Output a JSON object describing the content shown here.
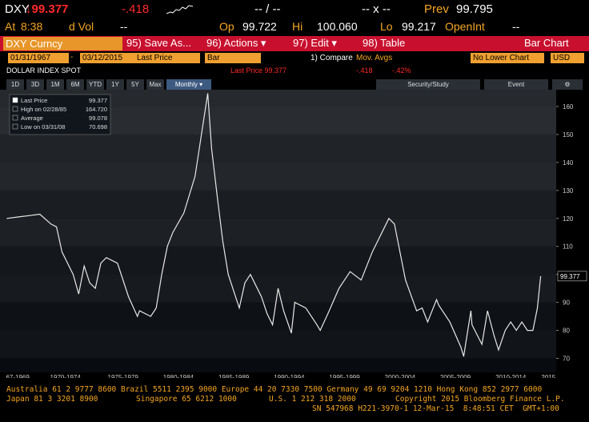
{
  "header": {
    "ticker": "DXY",
    "last": "↓99.377",
    "change": "-.418",
    "bid_ask": "-- / --",
    "size": "-- x --",
    "prev_label": "Prev",
    "prev": "99.795"
  },
  "header2": {
    "at_label": "At",
    "time": "8:38",
    "vol_label": "d Vol",
    "vol": "--",
    "open_label": "Op",
    "open": "99.722",
    "high_label": "Hi",
    "high": "100.060",
    "low_label": "Lo",
    "low": "99.217",
    "oi_label": "OpenInt",
    "oi": "--"
  },
  "toolbar": {
    "security": "DXY Curncy",
    "buttons": [
      "95) Save As...",
      "96) Actions ▾",
      "97) Edit ▾",
      "98) Table"
    ],
    "view": "Bar Chart"
  },
  "settings": {
    "start": "01/31/1967",
    "sep": "-",
    "end": "03/12/2015",
    "field": "Last Price",
    "style": "Bar",
    "compare": "1) Compare",
    "mov": "Mov. Avgs",
    "lower": "No Lower Chart",
    "currency": "USD"
  },
  "info": {
    "name": "DOLLAR INDEX SPOT",
    "last": "Last Price 99.377",
    "change": "-.418",
    "pct": "-.42%"
  },
  "periods": [
    "1D",
    "3D",
    "1M",
    "6M",
    "YTD",
    "1Y",
    "5Y",
    "Max"
  ],
  "frequency": "Monthly ▾",
  "tools": [
    "Security/Study",
    "Event"
  ],
  "chart": {
    "type": "line",
    "color": "#e8e8e8",
    "legend": [
      {
        "label": "Last Price",
        "value": "99.377"
      },
      {
        "label": "High on 02/28/85",
        "value": "164.720"
      },
      {
        "label": "Average",
        "value": "99.078"
      },
      {
        "label": "Low on 03/31/08",
        "value": "70.698"
      }
    ],
    "last_label": "99.377",
    "x": [
      1967,
      1968,
      1969,
      1970,
      1971,
      1971.5,
      1972,
      1973,
      1973.5,
      1974,
      1974.5,
      1975,
      1975.5,
      1976,
      1977,
      1978,
      1978.8,
      1979,
      1980,
      1980.5,
      1981,
      1981.5,
      1982,
      1983,
      1984,
      1985.15,
      1985.5,
      1986,
      1986.5,
      1987,
      1988,
      1988.5,
      1989,
      1989.5,
      1990,
      1990.5,
      1991,
      1991.5,
      1992,
      1992.7,
      1993,
      1994,
      1995,
      1995.3,
      1996,
      1997,
      1998,
      1999,
      2000,
      2001,
      2001.5,
      2002,
      2002.5,
      2003,
      2004,
      2004.5,
      2005,
      2005.8,
      2006,
      2007,
      2008,
      2008.25,
      2008.9,
      2009,
      2009.9,
      2010.4,
      2011,
      2011.4,
      2012,
      2012.5,
      2013,
      2013.5,
      2014,
      2014.5,
      2014.9,
      2015.2
    ],
    "values": [
      120,
      120.5,
      121,
      121.5,
      118,
      117,
      108,
      100,
      93,
      103,
      97,
      95,
      104,
      106,
      104,
      92,
      85,
      87,
      85,
      88,
      100,
      110,
      115,
      122,
      135,
      164.72,
      145,
      128,
      112,
      100,
      88,
      97,
      100,
      96,
      92,
      86,
      82,
      95,
      87,
      79,
      90,
      88,
      82,
      80,
      86,
      95,
      101,
      98,
      108,
      116,
      120,
      118,
      108,
      98,
      87,
      88,
      83,
      91,
      89,
      83,
      74,
      70.698,
      87,
      82,
      75,
      87,
      78,
      73,
      80,
      83,
      80,
      83,
      80,
      80,
      88,
      99.377
    ],
    "xlim": [
      1966.4,
      2016.6
    ],
    "ylim": [
      65,
      166
    ],
    "yticks": [
      70,
      80,
      90,
      100,
      110,
      120,
      130,
      140,
      150,
      160
    ],
    "xticks": [
      {
        "value": 1968,
        "label": "67-1969"
      },
      {
        "value": 1972.3,
        "label": "1970-1974"
      },
      {
        "value": 1977.5,
        "label": "1975-1979"
      },
      {
        "value": 1982.5,
        "label": "1980-1984"
      },
      {
        "value": 1987.5,
        "label": "1985-1989"
      },
      {
        "value": 1992.5,
        "label": "1990-1994"
      },
      {
        "value": 1997.5,
        "label": "1995-1999"
      },
      {
        "value": 2002.5,
        "label": "2000-2004"
      },
      {
        "value": 2007.5,
        "label": "2005-2009"
      },
      {
        "value": 2012.5,
        "label": "2010-2014"
      },
      {
        "value": 2015.9,
        "label": "2015"
      }
    ]
  },
  "footer": {
    "line1": "Australia 61 2 9777 8600 Brazil 5511 2395 9000 Europe 44 20 7330 7500 Germany 49 69 9204 1210 Hong Kong 852 2977 6000",
    "line2": [
      "Japan 81 3 3201 8900",
      "Singapore 65 6212 1000",
      "U.S. 1 212 318 2000",
      "Copyright 2015 Bloomberg Finance L.P."
    ],
    "line3": "SN 547968 H221-3970-1 12-Mar-15  8:48:51 CET  GMT+1:00"
  }
}
